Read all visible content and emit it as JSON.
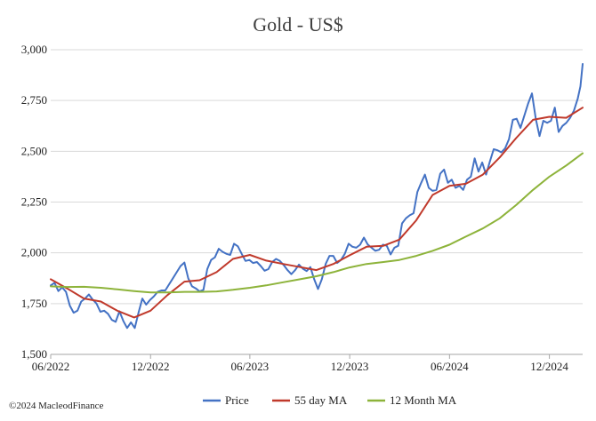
{
  "chart_data": {
    "type": "line",
    "title": "Gold - US$",
    "xlabel": "",
    "ylabel": "",
    "x_range": [
      "2022-06-01",
      "2025-01-31"
    ],
    "ylim": [
      1500,
      3000
    ],
    "y_ticks": [
      1500,
      1750,
      2000,
      2250,
      2500,
      2750,
      3000
    ],
    "y_tick_labels": [
      "1,500",
      "1,750",
      "2,000",
      "2,250",
      "2,500",
      "2,750",
      "3,000"
    ],
    "x_ticks": [
      "2022-06-01",
      "2022-12-01",
      "2023-06-01",
      "2023-12-01",
      "2024-06-01",
      "2024-12-01"
    ],
    "x_tick_labels": [
      "06/2022",
      "12/2022",
      "06/2023",
      "12/2023",
      "06/2024",
      "12/2024"
    ],
    "grid": "horizontal",
    "legend_position": "bottom",
    "copyright": "©2024 MacleodFinance",
    "series": [
      {
        "name": "Price",
        "color": "#4472C4",
        "points": [
          [
            "2022-06-01",
            1840
          ],
          [
            "2022-06-08",
            1852
          ],
          [
            "2022-06-15",
            1812
          ],
          [
            "2022-06-22",
            1830
          ],
          [
            "2022-06-29",
            1808
          ],
          [
            "2022-07-06",
            1740
          ],
          [
            "2022-07-13",
            1705
          ],
          [
            "2022-07-20",
            1715
          ],
          [
            "2022-07-27",
            1760
          ],
          [
            "2022-08-03",
            1775
          ],
          [
            "2022-08-10",
            1795
          ],
          [
            "2022-08-17",
            1770
          ],
          [
            "2022-08-24",
            1750
          ],
          [
            "2022-08-31",
            1710
          ],
          [
            "2022-09-07",
            1715
          ],
          [
            "2022-09-14",
            1700
          ],
          [
            "2022-09-21",
            1670
          ],
          [
            "2022-09-28",
            1660
          ],
          [
            "2022-10-05",
            1712
          ],
          [
            "2022-10-12",
            1665
          ],
          [
            "2022-10-19",
            1630
          ],
          [
            "2022-10-26",
            1658
          ],
          [
            "2022-11-02",
            1630
          ],
          [
            "2022-11-09",
            1705
          ],
          [
            "2022-11-16",
            1775
          ],
          [
            "2022-11-23",
            1745
          ],
          [
            "2022-11-30",
            1768
          ],
          [
            "2022-12-07",
            1785
          ],
          [
            "2022-12-14",
            1808
          ],
          [
            "2022-12-21",
            1815
          ],
          [
            "2022-12-28",
            1815
          ],
          [
            "2023-01-04",
            1845
          ],
          [
            "2023-01-11",
            1875
          ],
          [
            "2023-01-18",
            1905
          ],
          [
            "2023-01-25",
            1935
          ],
          [
            "2023-02-01",
            1952
          ],
          [
            "2023-02-08",
            1875
          ],
          [
            "2023-02-15",
            1835
          ],
          [
            "2023-02-22",
            1825
          ],
          [
            "2023-03-01",
            1810
          ],
          [
            "2023-03-08",
            1818
          ],
          [
            "2023-03-15",
            1920
          ],
          [
            "2023-03-22",
            1965
          ],
          [
            "2023-03-29",
            1978
          ],
          [
            "2023-04-05",
            2020
          ],
          [
            "2023-04-12",
            2005
          ],
          [
            "2023-04-19",
            1995
          ],
          [
            "2023-04-26",
            1990
          ],
          [
            "2023-05-03",
            2045
          ],
          [
            "2023-05-10",
            2032
          ],
          [
            "2023-05-17",
            1995
          ],
          [
            "2023-05-24",
            1960
          ],
          [
            "2023-05-31",
            1965
          ],
          [
            "2023-06-07",
            1950
          ],
          [
            "2023-06-14",
            1955
          ],
          [
            "2023-06-21",
            1935
          ],
          [
            "2023-06-28",
            1912
          ],
          [
            "2023-07-05",
            1920
          ],
          [
            "2023-07-12",
            1955
          ],
          [
            "2023-07-19",
            1970
          ],
          [
            "2023-07-26",
            1960
          ],
          [
            "2023-08-02",
            1940
          ],
          [
            "2023-08-09",
            1915
          ],
          [
            "2023-08-16",
            1895
          ],
          [
            "2023-08-23",
            1915
          ],
          [
            "2023-08-30",
            1942
          ],
          [
            "2023-09-06",
            1922
          ],
          [
            "2023-09-13",
            1910
          ],
          [
            "2023-09-20",
            1930
          ],
          [
            "2023-09-27",
            1870
          ],
          [
            "2023-10-04",
            1822
          ],
          [
            "2023-10-11",
            1870
          ],
          [
            "2023-10-18",
            1945
          ],
          [
            "2023-10-25",
            1985
          ],
          [
            "2023-11-01",
            1985
          ],
          [
            "2023-11-08",
            1950
          ],
          [
            "2023-11-15",
            1965
          ],
          [
            "2023-11-22",
            1995
          ],
          [
            "2023-11-29",
            2045
          ],
          [
            "2023-12-06",
            2030
          ],
          [
            "2023-12-13",
            2025
          ],
          [
            "2023-12-20",
            2040
          ],
          [
            "2023-12-27",
            2075
          ],
          [
            "2024-01-03",
            2042
          ],
          [
            "2024-01-10",
            2025
          ],
          [
            "2024-01-17",
            2010
          ],
          [
            "2024-01-24",
            2015
          ],
          [
            "2024-01-31",
            2040
          ],
          [
            "2024-02-07",
            2035
          ],
          [
            "2024-02-14",
            1992
          ],
          [
            "2024-02-21",
            2025
          ],
          [
            "2024-02-28",
            2035
          ],
          [
            "2024-03-06",
            2145
          ],
          [
            "2024-03-13",
            2170
          ],
          [
            "2024-03-20",
            2185
          ],
          [
            "2024-03-27",
            2195
          ],
          [
            "2024-04-03",
            2300
          ],
          [
            "2024-04-10",
            2345
          ],
          [
            "2024-04-17",
            2385
          ],
          [
            "2024-04-24",
            2320
          ],
          [
            "2024-05-01",
            2305
          ],
          [
            "2024-05-08",
            2310
          ],
          [
            "2024-05-15",
            2390
          ],
          [
            "2024-05-22",
            2410
          ],
          [
            "2024-05-29",
            2345
          ],
          [
            "2024-06-05",
            2360
          ],
          [
            "2024-06-12",
            2320
          ],
          [
            "2024-06-19",
            2330
          ],
          [
            "2024-06-26",
            2310
          ],
          [
            "2024-07-03",
            2360
          ],
          [
            "2024-07-10",
            2375
          ],
          [
            "2024-07-17",
            2465
          ],
          [
            "2024-07-24",
            2400
          ],
          [
            "2024-07-31",
            2445
          ],
          [
            "2024-08-07",
            2385
          ],
          [
            "2024-08-14",
            2450
          ],
          [
            "2024-08-21",
            2510
          ],
          [
            "2024-08-28",
            2505
          ],
          [
            "2024-09-04",
            2495
          ],
          [
            "2024-09-11",
            2515
          ],
          [
            "2024-09-18",
            2560
          ],
          [
            "2024-09-25",
            2655
          ],
          [
            "2024-10-02",
            2660
          ],
          [
            "2024-10-09",
            2615
          ],
          [
            "2024-10-16",
            2675
          ],
          [
            "2024-10-23",
            2735
          ],
          [
            "2024-10-30",
            2785
          ],
          [
            "2024-11-06",
            2660
          ],
          [
            "2024-11-13",
            2575
          ],
          [
            "2024-11-20",
            2650
          ],
          [
            "2024-11-27",
            2640
          ],
          [
            "2024-12-04",
            2650
          ],
          [
            "2024-12-11",
            2715
          ],
          [
            "2024-12-18",
            2595
          ],
          [
            "2024-12-25",
            2625
          ],
          [
            "2025-01-01",
            2640
          ],
          [
            "2025-01-08",
            2665
          ],
          [
            "2025-01-15",
            2700
          ],
          [
            "2025-01-22",
            2760
          ],
          [
            "2025-01-27",
            2820
          ],
          [
            "2025-01-31",
            2930
          ]
        ]
      },
      {
        "name": "55 day MA",
        "color": "#C0392B",
        "points": [
          [
            "2022-06-01",
            1870
          ],
          [
            "2022-07-01",
            1825
          ],
          [
            "2022-08-01",
            1775
          ],
          [
            "2022-09-01",
            1760
          ],
          [
            "2022-10-01",
            1715
          ],
          [
            "2022-11-01",
            1682
          ],
          [
            "2022-12-01",
            1715
          ],
          [
            "2023-01-01",
            1792
          ],
          [
            "2023-02-01",
            1858
          ],
          [
            "2023-03-01",
            1865
          ],
          [
            "2023-04-01",
            1905
          ],
          [
            "2023-05-01",
            1970
          ],
          [
            "2023-06-01",
            1990
          ],
          [
            "2023-07-01",
            1962
          ],
          [
            "2023-08-01",
            1945
          ],
          [
            "2023-09-01",
            1930
          ],
          [
            "2023-10-01",
            1915
          ],
          [
            "2023-11-01",
            1945
          ],
          [
            "2023-12-01",
            1988
          ],
          [
            "2024-01-01",
            2030
          ],
          [
            "2024-02-01",
            2035
          ],
          [
            "2024-03-01",
            2065
          ],
          [
            "2024-04-01",
            2160
          ],
          [
            "2024-05-01",
            2285
          ],
          [
            "2024-06-01",
            2330
          ],
          [
            "2024-07-01",
            2340
          ],
          [
            "2024-08-01",
            2385
          ],
          [
            "2024-09-01",
            2470
          ],
          [
            "2024-10-01",
            2565
          ],
          [
            "2024-11-01",
            2655
          ],
          [
            "2024-12-01",
            2670
          ],
          [
            "2025-01-01",
            2665
          ],
          [
            "2025-01-31",
            2715
          ]
        ]
      },
      {
        "name": "12 Month MA",
        "color": "#8DB33A",
        "points": [
          [
            "2022-06-01",
            1835
          ],
          [
            "2022-07-01",
            1832
          ],
          [
            "2022-08-01",
            1833
          ],
          [
            "2022-09-01",
            1828
          ],
          [
            "2022-10-01",
            1820
          ],
          [
            "2022-11-01",
            1812
          ],
          [
            "2022-12-01",
            1805
          ],
          [
            "2023-01-01",
            1805
          ],
          [
            "2023-02-01",
            1808
          ],
          [
            "2023-03-01",
            1808
          ],
          [
            "2023-04-01",
            1810
          ],
          [
            "2023-05-01",
            1818
          ],
          [
            "2023-06-01",
            1828
          ],
          [
            "2023-07-01",
            1840
          ],
          [
            "2023-08-01",
            1855
          ],
          [
            "2023-09-01",
            1870
          ],
          [
            "2023-10-01",
            1885
          ],
          [
            "2023-11-01",
            1905
          ],
          [
            "2023-12-01",
            1928
          ],
          [
            "2024-01-01",
            1945
          ],
          [
            "2024-02-01",
            1955
          ],
          [
            "2024-03-01",
            1965
          ],
          [
            "2024-04-01",
            1985
          ],
          [
            "2024-05-01",
            2010
          ],
          [
            "2024-06-01",
            2040
          ],
          [
            "2024-07-01",
            2080
          ],
          [
            "2024-08-01",
            2120
          ],
          [
            "2024-09-01",
            2170
          ],
          [
            "2024-10-01",
            2235
          ],
          [
            "2024-11-01",
            2310
          ],
          [
            "2024-12-01",
            2375
          ],
          [
            "2025-01-01",
            2430
          ],
          [
            "2025-01-31",
            2490
          ]
        ]
      }
    ]
  }
}
